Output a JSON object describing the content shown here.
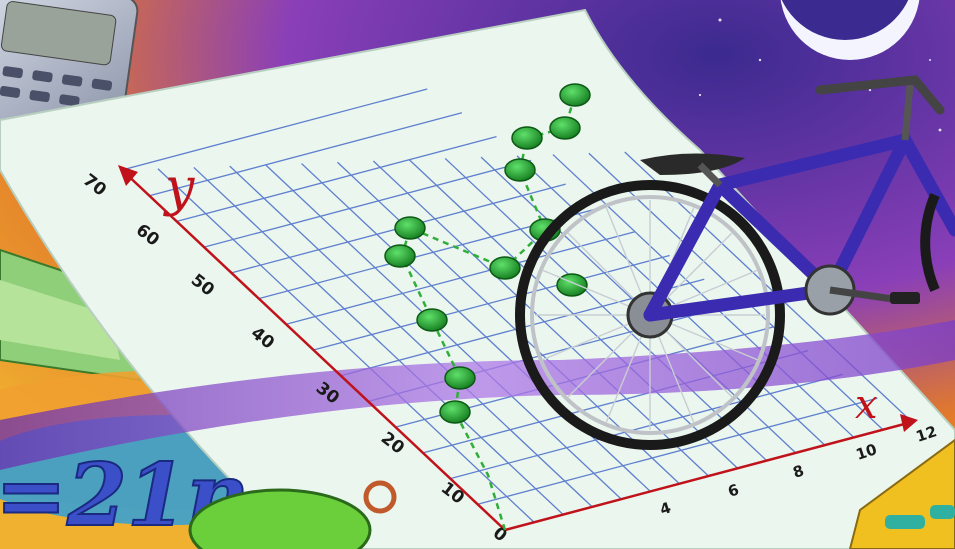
{
  "graph": {
    "y_axis_label": "y",
    "x_axis_label": "x",
    "y_ticks": [
      "70",
      "60",
      "50",
      "40",
      "30",
      "20",
      "10",
      "0"
    ],
    "x_ticks": [
      "4",
      "6",
      "8",
      "10",
      "12"
    ],
    "point_color": "#1f9a2a",
    "axis_color": "#c0121a",
    "grid_color": "#5f7fcf"
  },
  "formula": {
    "text": "=21n"
  },
  "colors": {
    "paper": "#eaf6ee",
    "bike_frame": "#3a2bb0",
    "band": "#9f4fd8"
  }
}
